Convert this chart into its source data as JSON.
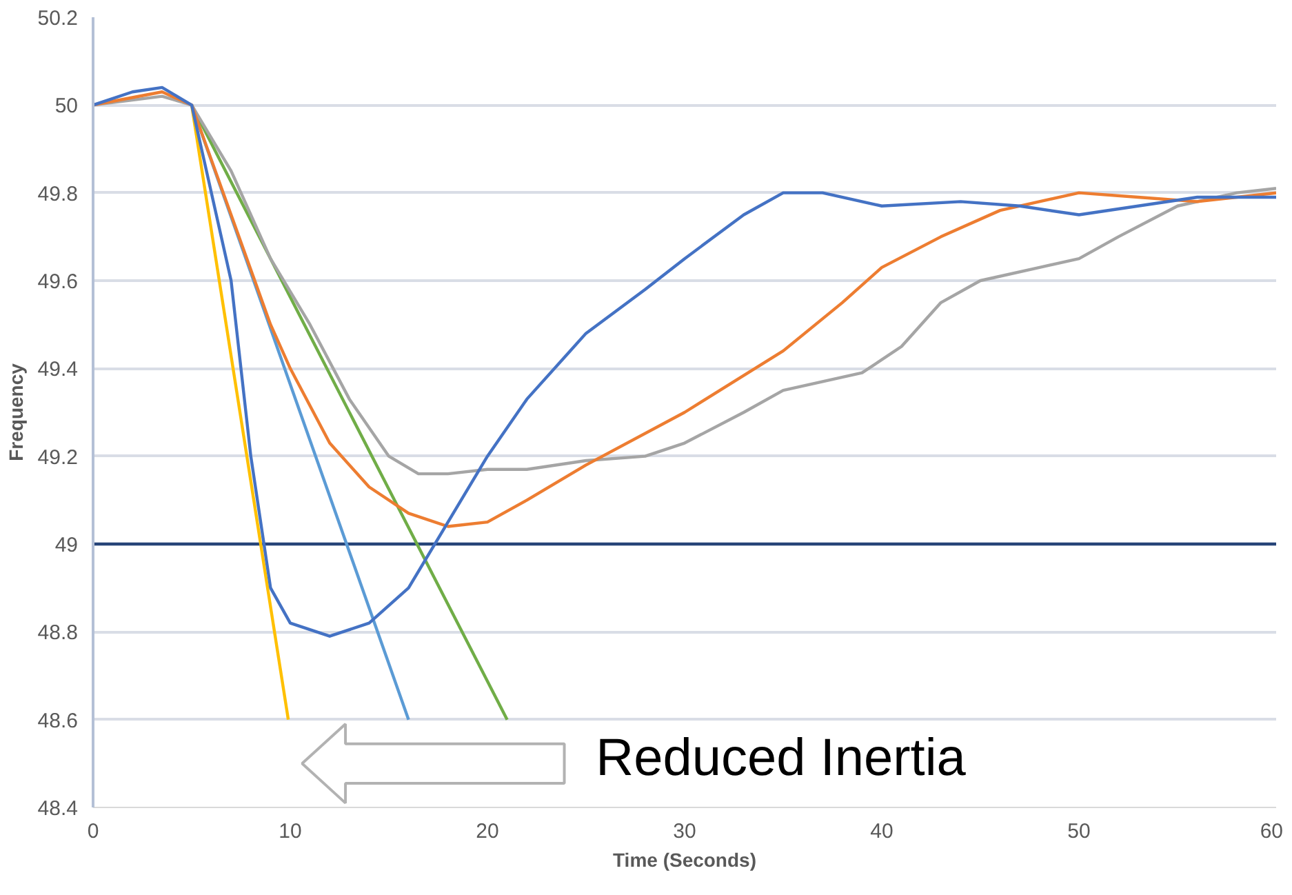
{
  "chart_data": {
    "type": "line",
    "xlabel": "Time (Seconds)",
    "ylabel": "Frequency",
    "xlim": [
      0,
      60
    ],
    "ylim": [
      48.4,
      50.2
    ],
    "xticks": [
      0,
      10,
      20,
      30,
      40,
      50,
      60
    ],
    "yticks": [
      48.4,
      48.6,
      48.8,
      49,
      49.2,
      49.4,
      49.6,
      49.8,
      50,
      50.2
    ],
    "grid": "y",
    "marker": "none",
    "line_style": "solid",
    "annotations": [
      "Reduced Inertia"
    ],
    "series": [
      {
        "color": "#4472c4",
        "x": [
          0,
          2,
          3.5,
          5,
          7,
          8,
          9,
          10,
          12,
          14,
          16,
          18,
          20,
          22,
          25,
          28,
          30,
          33,
          35,
          37,
          40,
          44,
          47,
          50,
          53,
          56,
          60
        ],
        "values": [
          50,
          50.03,
          50.04,
          50,
          49.6,
          49.2,
          48.9,
          48.82,
          48.79,
          48.82,
          48.9,
          49.05,
          49.2,
          49.33,
          49.48,
          49.58,
          49.65,
          49.75,
          49.8,
          49.8,
          49.77,
          49.78,
          49.77,
          49.75,
          49.77,
          49.79,
          49.79
        ]
      },
      {
        "color": "#ed7d31",
        "x": [
          0,
          3.5,
          5,
          7,
          9,
          10,
          12,
          14,
          16,
          18,
          20,
          22,
          25,
          30,
          35,
          38,
          40,
          43,
          46,
          50,
          53,
          56,
          60
        ],
        "values": [
          50,
          50.03,
          50,
          49.75,
          49.5,
          49.4,
          49.23,
          49.13,
          49.07,
          49.04,
          49.05,
          49.1,
          49.18,
          49.3,
          49.44,
          49.55,
          49.63,
          49.7,
          49.76,
          49.8,
          49.79,
          49.78,
          49.8
        ]
      },
      {
        "color": "#a5a5a5",
        "x": [
          0,
          3.5,
          5,
          7,
          9,
          11,
          13,
          15,
          16.5,
          18,
          20,
          22,
          25,
          28,
          30,
          33,
          35,
          37,
          39,
          41,
          43,
          45,
          48,
          50,
          52,
          55,
          58,
          60
        ],
        "values": [
          50,
          50.02,
          50,
          49.85,
          49.65,
          49.5,
          49.33,
          49.2,
          49.16,
          49.16,
          49.17,
          49.17,
          49.19,
          49.2,
          49.23,
          49.3,
          49.35,
          49.37,
          49.39,
          49.45,
          49.55,
          49.6,
          49.63,
          49.65,
          49.7,
          49.77,
          49.8,
          49.81
        ]
      },
      {
        "color": "#ffc000",
        "x": [
          5,
          9.9
        ],
        "values": [
          50,
          48.6
        ]
      },
      {
        "color": "#5b9bd5",
        "x": [
          5,
          16
        ],
        "values": [
          50,
          48.6
        ]
      },
      {
        "color": "#70ad47",
        "x": [
          5,
          21
        ],
        "values": [
          50,
          48.6
        ]
      },
      {
        "color": "#264478",
        "x": [
          0,
          60
        ],
        "values": [
          49,
          49
        ]
      }
    ]
  }
}
